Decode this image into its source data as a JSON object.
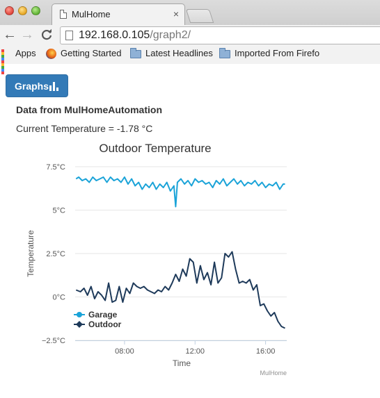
{
  "browser": {
    "tab_title": "MulHome",
    "tab_close": "×",
    "url_host": "192.168.0.105",
    "url_path": "/graph2/",
    "nav": {
      "back": "←",
      "forward": "→",
      "reload": "C"
    },
    "bookmarks": [
      {
        "label": "Apps",
        "icon": "apps-grid-icon"
      },
      {
        "label": "Getting Started",
        "icon": "firefox-icon"
      },
      {
        "label": "Latest Headlines",
        "icon": "folder-icon"
      },
      {
        "label": "Imported From Firefo",
        "icon": "folder-icon"
      }
    ]
  },
  "page": {
    "graphs_button": "Graphs",
    "heading": "Data from MulHomeAutomation",
    "current_temperature": "Current Temperature = -1.78 °C"
  },
  "colors": {
    "garage": "#1aa3d8",
    "outdoor": "#1e3a5a",
    "button": "#337ab7"
  },
  "chart_data": {
    "type": "line",
    "title": "Outdoor Temperature",
    "xlabel": "Time",
    "ylabel": "Temperature",
    "credit": "MulHome",
    "xlim": [
      5.2,
      17.2
    ],
    "ylim": [
      -2.5,
      7.5
    ],
    "y_ticks": [
      {
        "value": 7.5,
        "label": "7.5°C"
      },
      {
        "value": 5,
        "label": "5°C"
      },
      {
        "value": 2.5,
        "label": "2.5°C"
      },
      {
        "value": 0,
        "label": "0°C"
      },
      {
        "value": -2.5,
        "label": "−2.5°C"
      }
    ],
    "x_ticks": [
      {
        "value": 8,
        "label": "08:00"
      },
      {
        "value": 12,
        "label": "12:00"
      },
      {
        "value": 16,
        "label": "16:00"
      }
    ],
    "grid": "horizontal",
    "legend_position": "bottom-left",
    "series": [
      {
        "name": "Garage",
        "color": "#1aa3d8",
        "marker": "circle",
        "x": [
          5.25,
          5.4,
          5.6,
          5.8,
          6.0,
          6.2,
          6.4,
          6.6,
          6.8,
          7.0,
          7.2,
          7.4,
          7.6,
          7.8,
          8.0,
          8.2,
          8.4,
          8.6,
          8.8,
          9.0,
          9.2,
          9.4,
          9.6,
          9.8,
          10.0,
          10.2,
          10.4,
          10.6,
          10.8,
          10.9,
          11.0,
          11.2,
          11.4,
          11.6,
          11.8,
          12.0,
          12.2,
          12.4,
          12.6,
          12.8,
          13.0,
          13.2,
          13.4,
          13.6,
          13.8,
          14.0,
          14.2,
          14.4,
          14.6,
          14.8,
          15.0,
          15.2,
          15.4,
          15.6,
          15.8,
          16.0,
          16.2,
          16.4,
          16.6,
          16.8,
          17.0,
          17.1
        ],
        "y": [
          6.8,
          6.9,
          6.7,
          6.8,
          6.6,
          6.9,
          6.7,
          6.8,
          6.9,
          6.6,
          6.9,
          6.7,
          6.8,
          6.6,
          6.9,
          6.5,
          6.8,
          6.4,
          6.6,
          6.2,
          6.5,
          6.3,
          6.6,
          6.2,
          6.5,
          6.3,
          6.6,
          6.1,
          6.4,
          5.2,
          6.6,
          6.8,
          6.5,
          6.7,
          6.4,
          6.8,
          6.6,
          6.7,
          6.5,
          6.6,
          6.3,
          6.7,
          6.5,
          6.8,
          6.4,
          6.6,
          6.8,
          6.5,
          6.7,
          6.4,
          6.6,
          6.5,
          6.7,
          6.4,
          6.6,
          6.3,
          6.5,
          6.4,
          6.6,
          6.2,
          6.5,
          6.5
        ]
      },
      {
        "name": "Outdoor",
        "color": "#1e3a5a",
        "marker": "diamond",
        "x": [
          5.25,
          5.5,
          5.7,
          5.9,
          6.1,
          6.3,
          6.5,
          6.7,
          6.9,
          7.1,
          7.3,
          7.5,
          7.7,
          7.9,
          8.1,
          8.3,
          8.5,
          8.7,
          8.9,
          9.1,
          9.3,
          9.5,
          9.7,
          9.9,
          10.1,
          10.3,
          10.5,
          10.7,
          10.9,
          11.1,
          11.3,
          11.5,
          11.7,
          11.9,
          12.1,
          12.3,
          12.5,
          12.7,
          12.9,
          13.1,
          13.3,
          13.5,
          13.7,
          13.9,
          14.1,
          14.3,
          14.5,
          14.7,
          14.9,
          15.1,
          15.3,
          15.5,
          15.7,
          15.9,
          16.1,
          16.3,
          16.5,
          16.7,
          16.9,
          17.1
        ],
        "y": [
          0.4,
          0.3,
          0.5,
          0.1,
          0.6,
          -0.1,
          0.3,
          0.1,
          -0.2,
          0.8,
          -0.3,
          -0.2,
          0.6,
          -0.3,
          0.5,
          0.2,
          0.8,
          0.6,
          0.5,
          0.6,
          0.4,
          0.3,
          0.2,
          0.4,
          0.3,
          0.6,
          0.4,
          0.8,
          1.3,
          0.9,
          1.6,
          1.2,
          2.2,
          2.0,
          0.8,
          1.8,
          1.0,
          1.4,
          0.7,
          2.0,
          0.8,
          1.1,
          2.5,
          2.3,
          2.6,
          1.6,
          0.8,
          0.9,
          0.8,
          1.0,
          0.4,
          0.7,
          -0.5,
          -0.4,
          -0.8,
          -1.1,
          -0.9,
          -1.4,
          -1.7,
          -1.8
        ]
      }
    ]
  }
}
